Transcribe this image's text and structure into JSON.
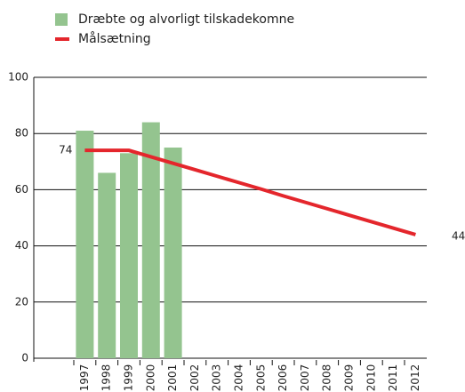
{
  "chart_data": {
    "type": "bar+line",
    "categories": [
      "1997",
      "1998",
      "1999",
      "2000",
      "2001",
      "2002",
      "2003",
      "2004",
      "2005",
      "2006",
      "2007",
      "2008",
      "2009",
      "2010",
      "2011",
      "2012"
    ],
    "series": [
      {
        "name": "Dræbte og alvorligt tilskadekomne",
        "type": "bar",
        "color": "#94c48f",
        "values": [
          81,
          66,
          73,
          84,
          75,
          null,
          null,
          null,
          null,
          null,
          null,
          null,
          null,
          null,
          null,
          null
        ]
      },
      {
        "name": "Målsætning",
        "type": "line",
        "color": "#e4262c",
        "values": [
          74,
          74,
          74,
          71.7,
          69.4,
          67.1,
          64.8,
          62.5,
          60.2,
          57.8,
          55.5,
          53.2,
          50.9,
          48.6,
          46.3,
          44
        ]
      }
    ],
    "ylim": [
      0,
      100
    ],
    "yticks": [
      0,
      20,
      40,
      60,
      80,
      100
    ],
    "grid": true,
    "legend": "top-left"
  }
}
